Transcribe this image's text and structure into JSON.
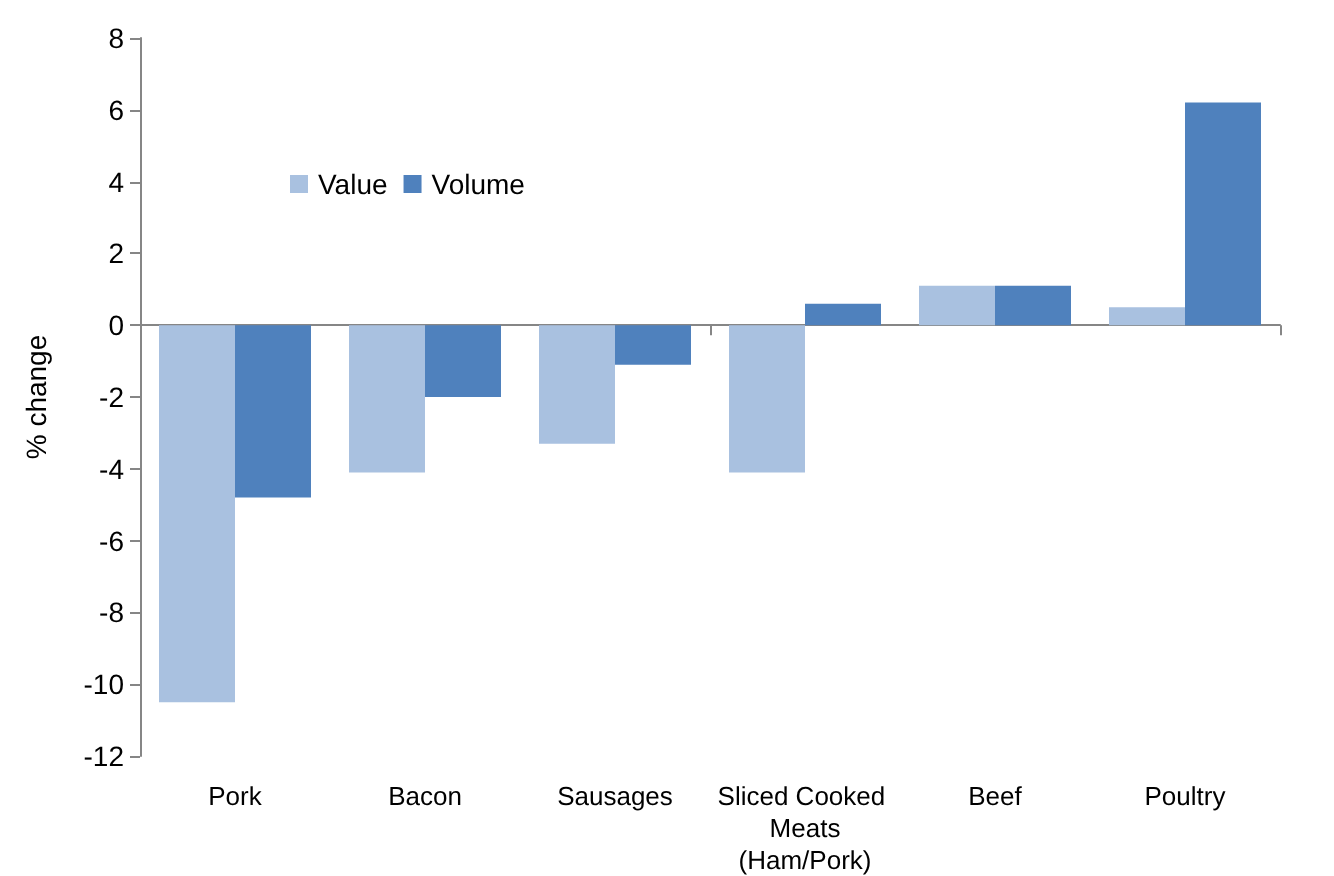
{
  "chart_data": {
    "type": "bar",
    "ylabel": "% change",
    "categories": [
      "Pork",
      "Bacon",
      "Sausages",
      "Sliced Cooked Meats (Ham/Pork)",
      "Beef",
      "Poultry"
    ],
    "series": [
      {
        "name": "Value",
        "color": "#a9c1e0",
        "values": [
          -10.5,
          -4.1,
          -3.3,
          -4.1,
          1.1,
          0.5
        ]
      },
      {
        "name": "Volume",
        "color": "#4f81bd",
        "values": [
          -4.8,
          -2.0,
          -1.1,
          0.6,
          1.1,
          6.2
        ]
      }
    ],
    "ylim": [
      -12,
      8
    ],
    "yticks": [
      -12,
      -10,
      -8,
      -6,
      -4,
      -2,
      0,
      2,
      4,
      6,
      8
    ],
    "legend": "top left"
  }
}
